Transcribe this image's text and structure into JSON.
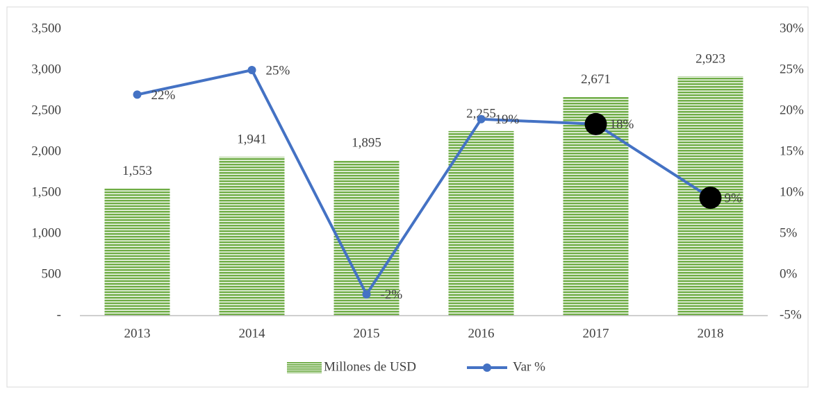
{
  "chart_data": {
    "type": "bar_line",
    "categories": [
      "2013",
      "2014",
      "2015",
      "2016",
      "2017",
      "2018"
    ],
    "series": [
      {
        "name": "Millones de USD",
        "type": "bar",
        "color": "#70ad47",
        "values": [
          1553,
          1941,
          1895,
          2255,
          2671,
          2923
        ],
        "value_labels": [
          "1,553",
          "1,941",
          "1,895",
          "2,255",
          "2,671",
          "2,923"
        ]
      },
      {
        "name": "Var %",
        "type": "line",
        "axis": "y2",
        "color": "#4472c4",
        "values": [
          22,
          25,
          -2.4,
          19,
          18.4,
          9.4
        ],
        "value_labels": [
          "22%",
          "25%",
          "-2%",
          "19%",
          "18%",
          "9%"
        ],
        "point_colors": [
          "#4472c4",
          "#4472c4",
          "#4472c4",
          "#4472c4",
          "#000000",
          "#000000"
        ],
        "point_sizes": [
          6,
          6,
          6,
          6,
          16,
          16
        ]
      }
    ],
    "ylim": [
      0,
      3500
    ],
    "yticks": [
      {
        "value": 0,
        "label": "-"
      },
      500,
      {
        "value": 1000,
        "label": "1,000"
      },
      {
        "value": 1500,
        "label": "1,500"
      },
      {
        "value": 2000,
        "label": "2,000"
      },
      {
        "value": 2500,
        "label": "2,500"
      },
      {
        "value": 3000,
        "label": "3,000"
      },
      {
        "value": 3500,
        "label": "3,500"
      }
    ],
    "y2lim": [
      -5,
      30
    ],
    "y2ticks": [
      {
        "value": -5,
        "label": "-5%"
      },
      {
        "value": 0,
        "label": "0%"
      },
      {
        "value": 5,
        "label": "5%"
      },
      {
        "value": 10,
        "label": "10%"
      },
      {
        "value": 15,
        "label": "15%"
      },
      {
        "value": 20,
        "label": "20%"
      },
      {
        "value": 25,
        "label": "25%"
      },
      {
        "value": 30,
        "label": "30%"
      }
    ],
    "legend": "bottom"
  }
}
